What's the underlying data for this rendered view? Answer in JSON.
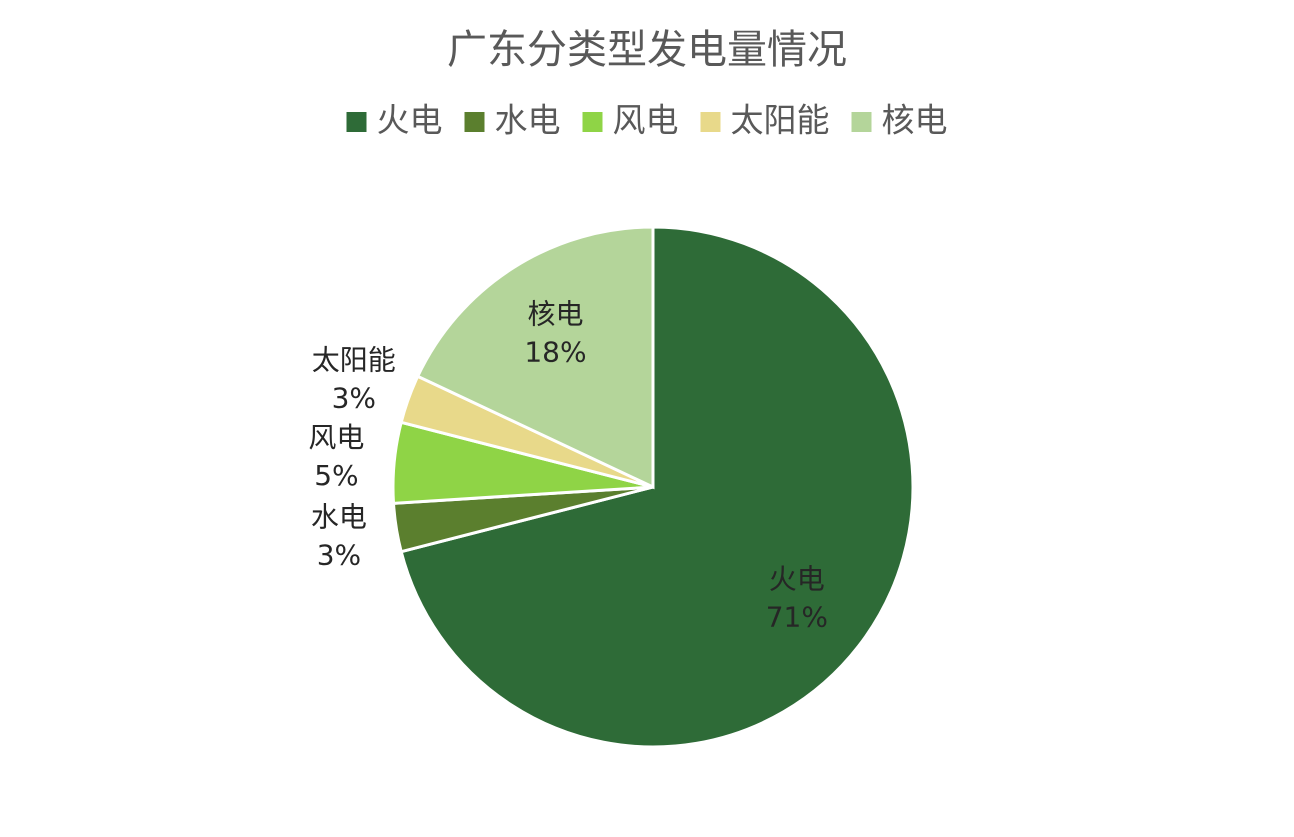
{
  "chart_data": {
    "type": "pie",
    "title": "广东分类型发电量情况",
    "categories": [
      "火电",
      "水电",
      "风电",
      "太阳能",
      "核电"
    ],
    "values": [
      71,
      3,
      5,
      3,
      18
    ],
    "value_labels": [
      "71%",
      "3%",
      "5%",
      "3%",
      "18%"
    ],
    "colors": [
      "#2e6b37",
      "#5b7f2e",
      "#8fd446",
      "#e8d98a",
      "#b4d59a"
    ],
    "legend": "top"
  }
}
